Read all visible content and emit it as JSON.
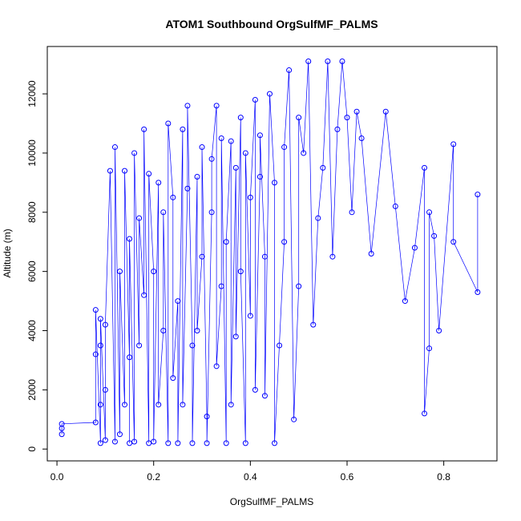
{
  "chart_data": {
    "type": "scatter",
    "title": "ATOM1 Southbound OrgSulfMF_PALMS",
    "xlabel": "OrgSulfMF_PALMS",
    "ylabel": "Altitude (m)",
    "xlim": [
      -0.02,
      0.91
    ],
    "ylim": [
      -400,
      13600
    ],
    "xticks": [
      0.0,
      0.2,
      0.4,
      0.6,
      0.8
    ],
    "xtick_labels": [
      "0.0",
      "0.2",
      "0.4",
      "0.6",
      "0.8"
    ],
    "yticks": [
      0,
      2000,
      4000,
      6000,
      8000,
      10000,
      12000
    ],
    "ytick_labels": [
      "0",
      "2000",
      "4000",
      "6000",
      "8000",
      "10000",
      "12000"
    ],
    "grid": false,
    "legend": "none",
    "marker": "open-circle",
    "color": "#0000ff",
    "series": [
      {
        "values_note": "",
        "x": [
          0.01,
          0.01,
          0.01,
          0.08,
          0.08,
          0.08,
          0.09,
          0.09,
          0.09,
          0.09,
          0.1,
          0.1,
          0.1,
          0.11,
          0.12,
          0.12,
          0.13,
          0.13,
          0.14,
          0.14,
          0.15,
          0.15,
          0.15,
          0.16,
          0.16,
          0.17,
          0.17,
          0.18,
          0.18,
          0.19,
          0.19,
          0.2,
          0.2,
          0.21,
          0.21,
          0.22,
          0.22,
          0.23,
          0.23,
          0.24,
          0.24,
          0.25,
          0.25,
          0.26,
          0.26,
          0.27,
          0.27,
          0.28,
          0.28,
          0.29,
          0.29,
          0.3,
          0.3,
          0.31,
          0.31,
          0.32,
          0.32,
          0.33,
          0.33,
          0.34,
          0.34,
          0.35,
          0.35,
          0.36,
          0.36,
          0.37,
          0.37,
          0.38,
          0.38,
          0.39,
          0.39,
          0.4,
          0.4,
          0.41,
          0.41,
          0.42,
          0.42,
          0.43,
          0.43,
          0.44,
          0.45,
          0.45,
          0.46,
          0.47,
          0.47,
          0.48,
          0.49,
          0.5,
          0.5,
          0.51,
          0.52,
          0.53,
          0.54,
          0.55,
          0.56,
          0.57,
          0.58,
          0.59,
          0.6,
          0.61,
          0.62,
          0.63,
          0.65,
          0.68,
          0.7,
          0.72,
          0.74,
          0.76,
          0.76,
          0.77,
          0.77,
          0.78,
          0.79,
          0.82,
          0.82,
          0.87,
          0.87
        ],
        "y": [
          500,
          700,
          850,
          900,
          3200,
          4700,
          200,
          1500,
          3500,
          4400,
          300,
          2000,
          4200,
          9400,
          250,
          10200,
          500,
          6000,
          1500,
          9400,
          3100,
          200,
          7100,
          250,
          10000,
          3500,
          7800,
          5200,
          10800,
          200,
          9300,
          6000,
          250,
          9000,
          1500,
          4000,
          8000,
          200,
          11000,
          8500,
          2400,
          5000,
          200,
          10800,
          1500,
          8800,
          11600,
          3500,
          200,
          9200,
          4000,
          6500,
          10200,
          1100,
          200,
          8000,
          9800,
          11600,
          2800,
          5500,
          10500,
          200,
          7000,
          10400,
          1500,
          9500,
          3800,
          11200,
          6000,
          200,
          10000,
          4500,
          8500,
          11800,
          2000,
          9200,
          10600,
          6500,
          1800,
          12000,
          9000,
          200,
          3500,
          7000,
          10200,
          12800,
          1000,
          5500,
          11200,
          10000,
          13100,
          4200,
          7800,
          9500,
          13100,
          6500,
          10800,
          13100,
          11200,
          8000,
          11400,
          10500,
          6600,
          11400,
          8200,
          5000,
          6800,
          9500,
          1200,
          3400,
          8000,
          7200,
          4000,
          10300,
          7000,
          5300,
          8600
        ],
        "name": ""
      }
    ]
  }
}
